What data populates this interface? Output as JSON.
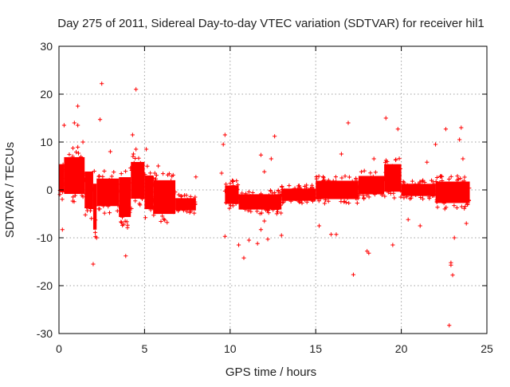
{
  "chart_data": {
    "type": "scatter",
    "title": "Day 275 of 2011, Sidereal Day-to-day VTEC variation (SDTVAR) for receiver hil1",
    "xlabel": "GPS time / hours",
    "ylabel": "SDTVAR / TECUs",
    "xlim": [
      0,
      25
    ],
    "ylim": [
      -30,
      30
    ],
    "xticks": [
      0,
      5,
      10,
      15,
      20,
      25
    ],
    "yticks": [
      -30,
      -20,
      -10,
      0,
      10,
      20,
      30
    ],
    "grid": true,
    "marker": "plus",
    "color": "#ff0000",
    "series": [
      {
        "name": "SDTVAR",
        "note": "dense point clusters summarised as bands; individual outliers listed in points",
        "bands": [
          {
            "x": [
              0.0,
              0.3
            ],
            "ymin": -2,
            "ymax": 7
          },
          {
            "x": [
              0.3,
              1.5
            ],
            "ymin": -3,
            "ymax": 9
          },
          {
            "x": [
              1.5,
              2.0
            ],
            "ymin": -6,
            "ymax": 6
          },
          {
            "x": [
              2.0,
              2.2
            ],
            "ymin": -11,
            "ymax": 4
          },
          {
            "x": [
              2.2,
              3.5
            ],
            "ymin": -5,
            "ymax": 4
          },
          {
            "x": [
              3.5,
              4.2
            ],
            "ymin": -8,
            "ymax": 5
          },
          {
            "x": [
              4.2,
              5.0
            ],
            "ymin": -4,
            "ymax": 8
          },
          {
            "x": [
              5.0,
              5.5
            ],
            "ymin": -6,
            "ymax": 5
          },
          {
            "x": [
              5.5,
              6.8
            ],
            "ymin": -7,
            "ymax": 4
          },
          {
            "x": [
              6.8,
              8.0
            ],
            "ymin": -5,
            "ymax": -1
          },
          {
            "x": [
              9.7,
              10.5
            ],
            "ymin": -4,
            "ymax": 2
          },
          {
            "x": [
              10.5,
              13.0
            ],
            "ymin": -5,
            "ymax": 0
          },
          {
            "x": [
              13.0,
              15.0
            ],
            "ymin": -3,
            "ymax": 1
          },
          {
            "x": [
              15.0,
              17.5
            ],
            "ymin": -3,
            "ymax": 3
          },
          {
            "x": [
              17.5,
              19.0
            ],
            "ymin": -2,
            "ymax": 4
          },
          {
            "x": [
              19.0,
              20.0
            ],
            "ymin": -2,
            "ymax": 7
          },
          {
            "x": [
              20.0,
              22.0
            ],
            "ymin": -2,
            "ymax": 2
          },
          {
            "x": [
              22.0,
              24.0
            ],
            "ymin": -4,
            "ymax": 3
          }
        ],
        "points": [
          [
            0.3,
            13.5
          ],
          [
            0.2,
            -8.3
          ],
          [
            0.9,
            14
          ],
          [
            1.1,
            13.5
          ],
          [
            1.1,
            17.5
          ],
          [
            0.8,
            7
          ],
          [
            1.4,
            10
          ],
          [
            2.0,
            -15.5
          ],
          [
            2.4,
            14.7
          ],
          [
            2.5,
            22.2
          ],
          [
            2.2,
            -10
          ],
          [
            3.0,
            8
          ],
          [
            3.9,
            -13.8
          ],
          [
            4.5,
            21
          ],
          [
            4.3,
            11.5
          ],
          [
            4.5,
            8.5
          ],
          [
            5.1,
            8.5
          ],
          [
            5.8,
            5
          ],
          [
            8.0,
            2.7
          ],
          [
            9.6,
            9.5
          ],
          [
            9.7,
            11.5
          ],
          [
            9.5,
            3.5
          ],
          [
            9.7,
            -9.7
          ],
          [
            10.5,
            -11.5
          ],
          [
            10.8,
            -14.2
          ],
          [
            11.1,
            -10.5
          ],
          [
            11.6,
            -11.2
          ],
          [
            11.8,
            -8.3
          ],
          [
            11.8,
            7.3
          ],
          [
            12.0,
            -6.5
          ],
          [
            12.2,
            -10.3
          ],
          [
            12.6,
            11.2
          ],
          [
            12.4,
            6.5
          ],
          [
            12.0,
            3.8
          ],
          [
            13.0,
            -9.5
          ],
          [
            15.2,
            -7.5
          ],
          [
            15.9,
            -9.3
          ],
          [
            16.2,
            -9.3
          ],
          [
            16.5,
            7.5
          ],
          [
            16.9,
            14
          ],
          [
            17.2,
            -17.7
          ],
          [
            18.0,
            -12.8
          ],
          [
            18.1,
            -13.2
          ],
          [
            18.4,
            6.5
          ],
          [
            19.1,
            15
          ],
          [
            19.5,
            -11.5
          ],
          [
            19.8,
            12.7
          ],
          [
            20.4,
            -6.2
          ],
          [
            21.1,
            -7.5
          ],
          [
            21.5,
            5.8
          ],
          [
            22.0,
            9.5
          ],
          [
            22.6,
            12.7
          ],
          [
            22.8,
            -28.3
          ],
          [
            22.9,
            -15.2
          ],
          [
            22.9,
            -15.7
          ],
          [
            23.0,
            -17.8
          ],
          [
            23.4,
            10.5
          ],
          [
            23.5,
            13
          ],
          [
            23.6,
            6.5
          ],
          [
            23.1,
            -10
          ],
          [
            23.8,
            -7
          ]
        ]
      }
    ]
  }
}
